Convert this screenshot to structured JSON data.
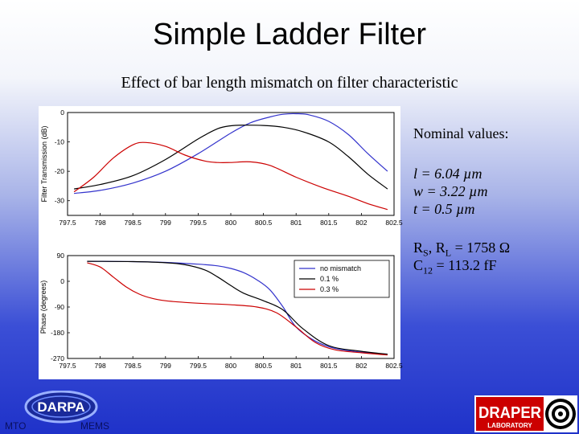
{
  "title": "Simple Ladder Filter",
  "subtitle": "Effect of bar length mismatch on filter characteristic",
  "params": {
    "heading": "Nominal values:",
    "l": "l = 6.04 µm",
    "w": "w = 3.22 µm",
    "t": "t = 0.5 µm",
    "rs_rl": "RS, RL = 1758 Ω",
    "c12": "C12 = 113.2 fF"
  },
  "logos": {
    "darpa_text": "DARPA",
    "mto_text": "MTO",
    "mems_text": "MEMS",
    "draper_text": "DRAPER",
    "laboratory_text": "LABORATORY"
  },
  "chart_data": [
    {
      "type": "line",
      "title": "",
      "xlabel": "",
      "ylabel": "Filter Transmission (dB)",
      "xlim": [
        797.5,
        802.5
      ],
      "ylim": [
        -35,
        0
      ],
      "x_ticks": [
        "797.5",
        "798",
        "798.5",
        "799",
        "799.5",
        "800",
        "800.5",
        "801",
        "801.5",
        "802",
        "802.5"
      ],
      "y_ticks": [
        {
          "value": 0,
          "label": "0"
        },
        {
          "value": -10,
          "label": "-10"
        },
        {
          "value": -20,
          "label": "-20"
        },
        {
          "value": -30,
          "label": "-30"
        }
      ],
      "series": [
        {
          "name": "no mismatch",
          "color": "#3333cc",
          "x": [
            797.6,
            798.0,
            798.5,
            799.0,
            799.5,
            800.0,
            800.3,
            800.6,
            800.8,
            801.0,
            801.2,
            801.5,
            801.8,
            802.1,
            802.4
          ],
          "y": [
            -27.5,
            -26.5,
            -24,
            -20,
            -14,
            -7,
            -3.5,
            -1.5,
            -0.6,
            -0.4,
            -0.8,
            -3,
            -7.5,
            -14,
            -20
          ]
        },
        {
          "name": "0.1 %",
          "color": "#000000",
          "x": [
            797.6,
            798.0,
            798.5,
            799.0,
            799.5,
            799.8,
            800.0,
            800.2,
            800.5,
            800.8,
            801.1,
            801.5,
            801.8,
            802.1,
            802.4
          ],
          "y": [
            -26,
            -24.5,
            -21.5,
            -16,
            -9,
            -5.5,
            -4.5,
            -4.3,
            -4.4,
            -5,
            -6.5,
            -10,
            -15,
            -21,
            -26
          ]
        },
        {
          "name": "0.3 %",
          "color": "#cc0000",
          "x": [
            797.6,
            797.9,
            798.2,
            798.5,
            798.7,
            799.0,
            799.3,
            799.6,
            799.8,
            800.0,
            800.3,
            800.6,
            801.0,
            801.4,
            801.8,
            802.1,
            802.4
          ],
          "y": [
            -27,
            -22,
            -15.5,
            -11,
            -10.2,
            -11.5,
            -14.5,
            -16.5,
            -17,
            -17,
            -16.8,
            -18,
            -22,
            -25.5,
            -28.5,
            -31,
            -33
          ]
        }
      ]
    },
    {
      "type": "line",
      "title": "",
      "xlabel": "",
      "ylabel": "Phase (degrees)",
      "xlim": [
        797.5,
        802.5
      ],
      "ylim": [
        -270,
        90
      ],
      "x_ticks": [
        "797.5",
        "798",
        "798.5",
        "799",
        "799.5",
        "800",
        "800.5",
        "801",
        "801.5",
        "802",
        "802.5"
      ],
      "y_ticks": [
        {
          "value": 90,
          "label": "90"
        },
        {
          "value": 0,
          "label": "0"
        },
        {
          "value": -90,
          "label": "-90"
        },
        {
          "value": -180,
          "label": "-180"
        },
        {
          "value": -270,
          "label": "-270"
        }
      ],
      "legend_position": "top-right",
      "series": [
        {
          "name": "no mismatch",
          "color": "#3333cc",
          "x": [
            797.8,
            798.5,
            799.0,
            799.5,
            799.8,
            800.0,
            800.2,
            800.4,
            800.6,
            800.8,
            801.0,
            801.3,
            801.6,
            802.0,
            802.4
          ],
          "y": [
            70,
            69,
            66,
            60,
            54,
            45,
            30,
            5,
            -30,
            -90,
            -160,
            -210,
            -235,
            -248,
            -255
          ]
        },
        {
          "name": "0.1 %",
          "color": "#000000",
          "x": [
            797.8,
            798.5,
            799.0,
            799.3,
            799.6,
            799.8,
            800.0,
            800.2,
            800.5,
            800.8,
            801.1,
            801.5,
            802.0,
            802.4
          ],
          "y": [
            70,
            69,
            65,
            58,
            40,
            15,
            -15,
            -42,
            -68,
            -100,
            -165,
            -225,
            -245,
            -255
          ]
        },
        {
          "name": "0.3 %",
          "color": "#cc0000",
          "x": [
            797.8,
            798.0,
            798.2,
            798.4,
            798.6,
            798.8,
            799.0,
            799.3,
            799.6,
            800.0,
            800.4,
            800.7,
            801.0,
            801.3,
            801.6,
            802.0,
            802.4
          ],
          "y": [
            65,
            50,
            15,
            -20,
            -45,
            -60,
            -68,
            -74,
            -78,
            -82,
            -90,
            -110,
            -160,
            -215,
            -240,
            -250,
            -258
          ]
        }
      ]
    }
  ]
}
